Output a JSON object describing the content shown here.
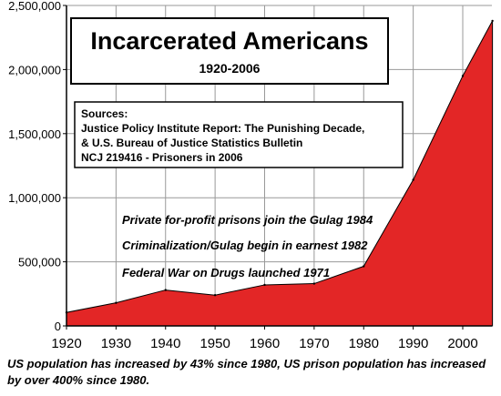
{
  "chart_data": {
    "type": "area",
    "title": "Incarcerated Americans",
    "subtitle": "1920-2006",
    "x": [
      1920,
      1930,
      1940,
      1950,
      1960,
      1970,
      1980,
      1990,
      2000,
      2006
    ],
    "series": [
      {
        "name": "",
        "values": [
          105000,
          180000,
          280000,
          240000,
          320000,
          330000,
          465000,
          1140000,
          1950000,
          2380000
        ],
        "color": "#e32626"
      }
    ],
    "x_ticks": [
      "1920",
      "1930",
      "1940",
      "1950",
      "1960",
      "1970",
      "1980",
      "1990",
      "2000"
    ],
    "y_ticks": [
      "0",
      "500,000",
      "1,000,000",
      "1,500,000",
      "2,000,000",
      "2,500,000"
    ],
    "y_tick_values": [
      0,
      500000,
      1000000,
      1500000,
      2000000,
      2500000
    ],
    "xlim": [
      1920,
      2006
    ],
    "ylim": [
      0,
      2500000
    ],
    "grid": true,
    "sources": {
      "heading": "Sources:",
      "lines": [
        "Justice Policy Institute Report: The Punishing Decade,",
        "& U.S. Bureau of Justice Statistics Bulletin",
        "NCJ 219416 - Prisoners in 2006"
      ]
    },
    "annotations": [
      "Private for-profit prisons join the Gulag 1984",
      "Criminalization/Gulag begin in earnest 1982",
      "Federal War on Drugs launched 1971"
    ],
    "caption": [
      "US population has increased by 43% since 1980, US prison population has increased",
      "by over 400% since 1980."
    ],
    "colors": {
      "fill": "#e32626",
      "grid": "#999999",
      "axis": "#000000"
    }
  }
}
